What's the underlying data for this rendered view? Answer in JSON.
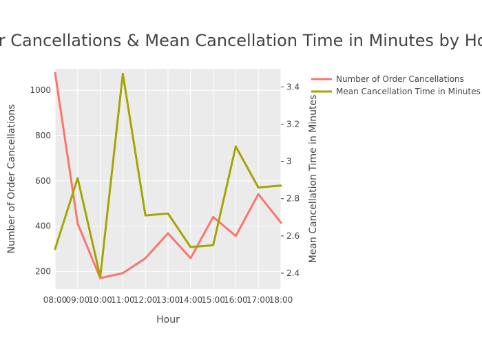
{
  "chart_data": {
    "type": "line",
    "title": "Order Cancellations & Mean Cancellation Time in Minutes by Hour",
    "xlabel": "Hour",
    "ylabel": "Number of Order Cancellations",
    "y2label": "Mean Cancellation Time in Minutes",
    "categories": [
      "08:00",
      "09:00",
      "10:00",
      "11:00",
      "12:00",
      "13:00",
      "14:00",
      "15:00",
      "16:00",
      "17:00",
      "18:00"
    ],
    "ylim": [
      122,
      1095
    ],
    "y2lim": [
      2.315,
      3.497
    ],
    "y_ticks": [
      200,
      400,
      600,
      800,
      1000
    ],
    "y2_ticks": [
      2.4,
      2.6,
      2.8,
      3,
      3.2,
      3.4
    ],
    "y2_tick_labels": [
      "2.4",
      "2.6",
      "2.8",
      "3",
      "3.2",
      "3.4"
    ],
    "grid": true,
    "legend_position": "top-right",
    "series": [
      {
        "name": "Number of Order Cancellations",
        "axis": "y",
        "color": "#f8766d",
        "values": [
          1077,
          411,
          170,
          192,
          258,
          368,
          258,
          440,
          356,
          541,
          415
        ]
      },
      {
        "name": "Mean Cancellation Time in Minutes",
        "axis": "y2",
        "color": "#a3a500",
        "values": [
          2.53,
          2.91,
          2.38,
          3.47,
          2.71,
          2.72,
          2.54,
          2.55,
          3.08,
          2.86,
          2.87
        ]
      }
    ]
  }
}
